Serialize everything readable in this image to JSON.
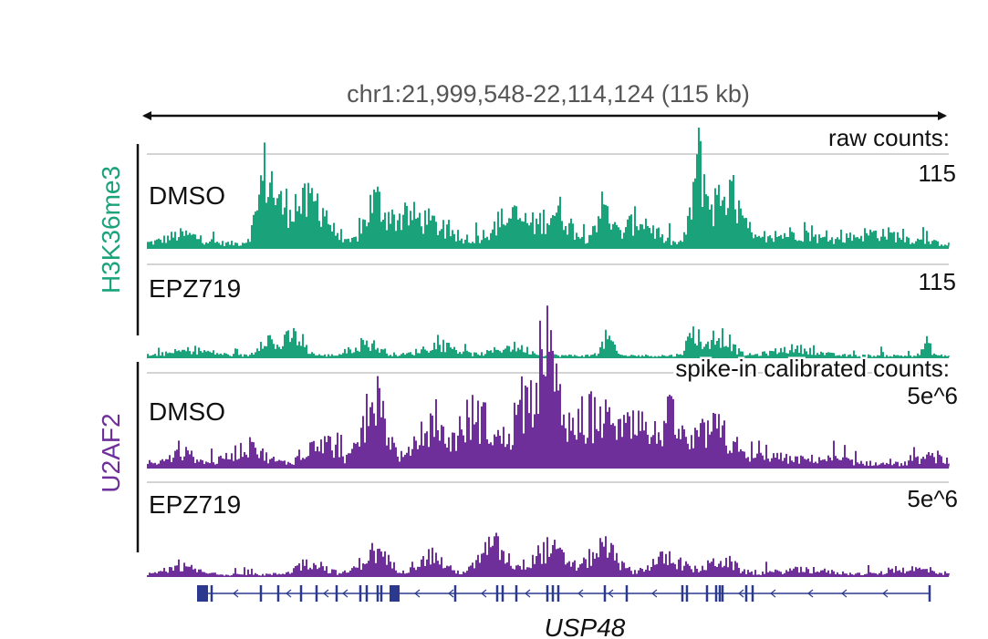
{
  "region": {
    "label": "chr1:21,999,548-22,114,124 (115 kb)"
  },
  "groups": [
    {
      "mark": "H3K36me3",
      "color": "#1aa37a",
      "scale_label": "raw counts:",
      "tracks": [
        {
          "label": "DMSO",
          "scale": "115"
        },
        {
          "label": "EPZ719",
          "scale": "115"
        }
      ]
    },
    {
      "mark": "U2AF2",
      "color": "#6e2f9b",
      "scale_label": "spike-in calibrated counts:",
      "tracks": [
        {
          "label": "DMSO",
          "scale": "5e^6"
        },
        {
          "label": "EPZ719",
          "scale": "5e^6"
        }
      ]
    }
  ],
  "gene": {
    "name": "USP48",
    "color": "#2b3a8f"
  },
  "colors": {
    "text": "#111111",
    "region_label": "#555555",
    "baseline": "#bbbbbb"
  }
}
